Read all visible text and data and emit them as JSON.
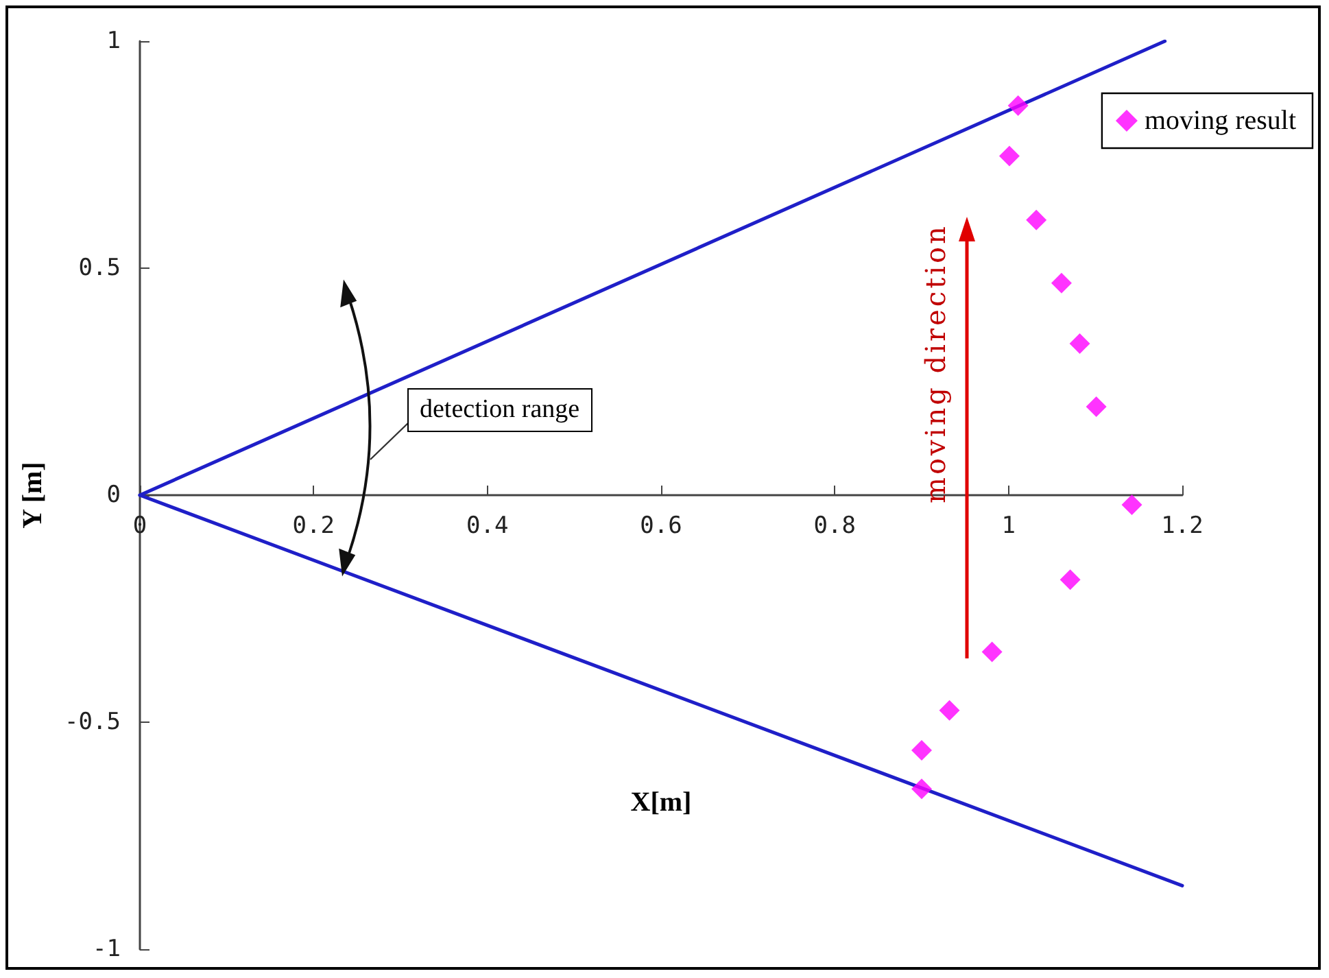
{
  "chart_data": {
    "type": "scatter",
    "xlabel": "X[m]",
    "ylabel": "Y [m]",
    "xlim": [
      0,
      1.2
    ],
    "ylim": [
      -1,
      1
    ],
    "xticks": [
      0,
      0.2,
      0.4,
      0.6,
      0.8,
      1,
      1.2
    ],
    "yticks": [
      -1,
      -0.5,
      0,
      0.5,
      1
    ],
    "grid": false,
    "legend": "top right",
    "marker": "diamond",
    "series": [
      {
        "name": "moving result",
        "color": "#ff00ff",
        "x": [
          1.011,
          1.001,
          1.032,
          1.061,
          1.082,
          1.101,
          1.142,
          1.071,
          0.981,
          0.932,
          0.9,
          0.9
        ],
        "values": [
          0.858,
          0.747,
          0.606,
          0.467,
          0.334,
          0.195,
          -0.021,
          -0.186,
          -0.345,
          -0.474,
          -0.562,
          -0.647
        ]
      },
      {
        "type": "line",
        "color": "#1f1fc8",
        "marker": "none",
        "x": [
          0,
          1.18
        ],
        "values": [
          0,
          1
        ]
      },
      {
        "type": "line",
        "color": "#1f1fc8",
        "marker": "none",
        "x": [
          0,
          1.2
        ],
        "values": [
          0,
          -0.86
        ]
      }
    ],
    "annotations": [
      "detection range",
      "moving direction"
    ]
  }
}
